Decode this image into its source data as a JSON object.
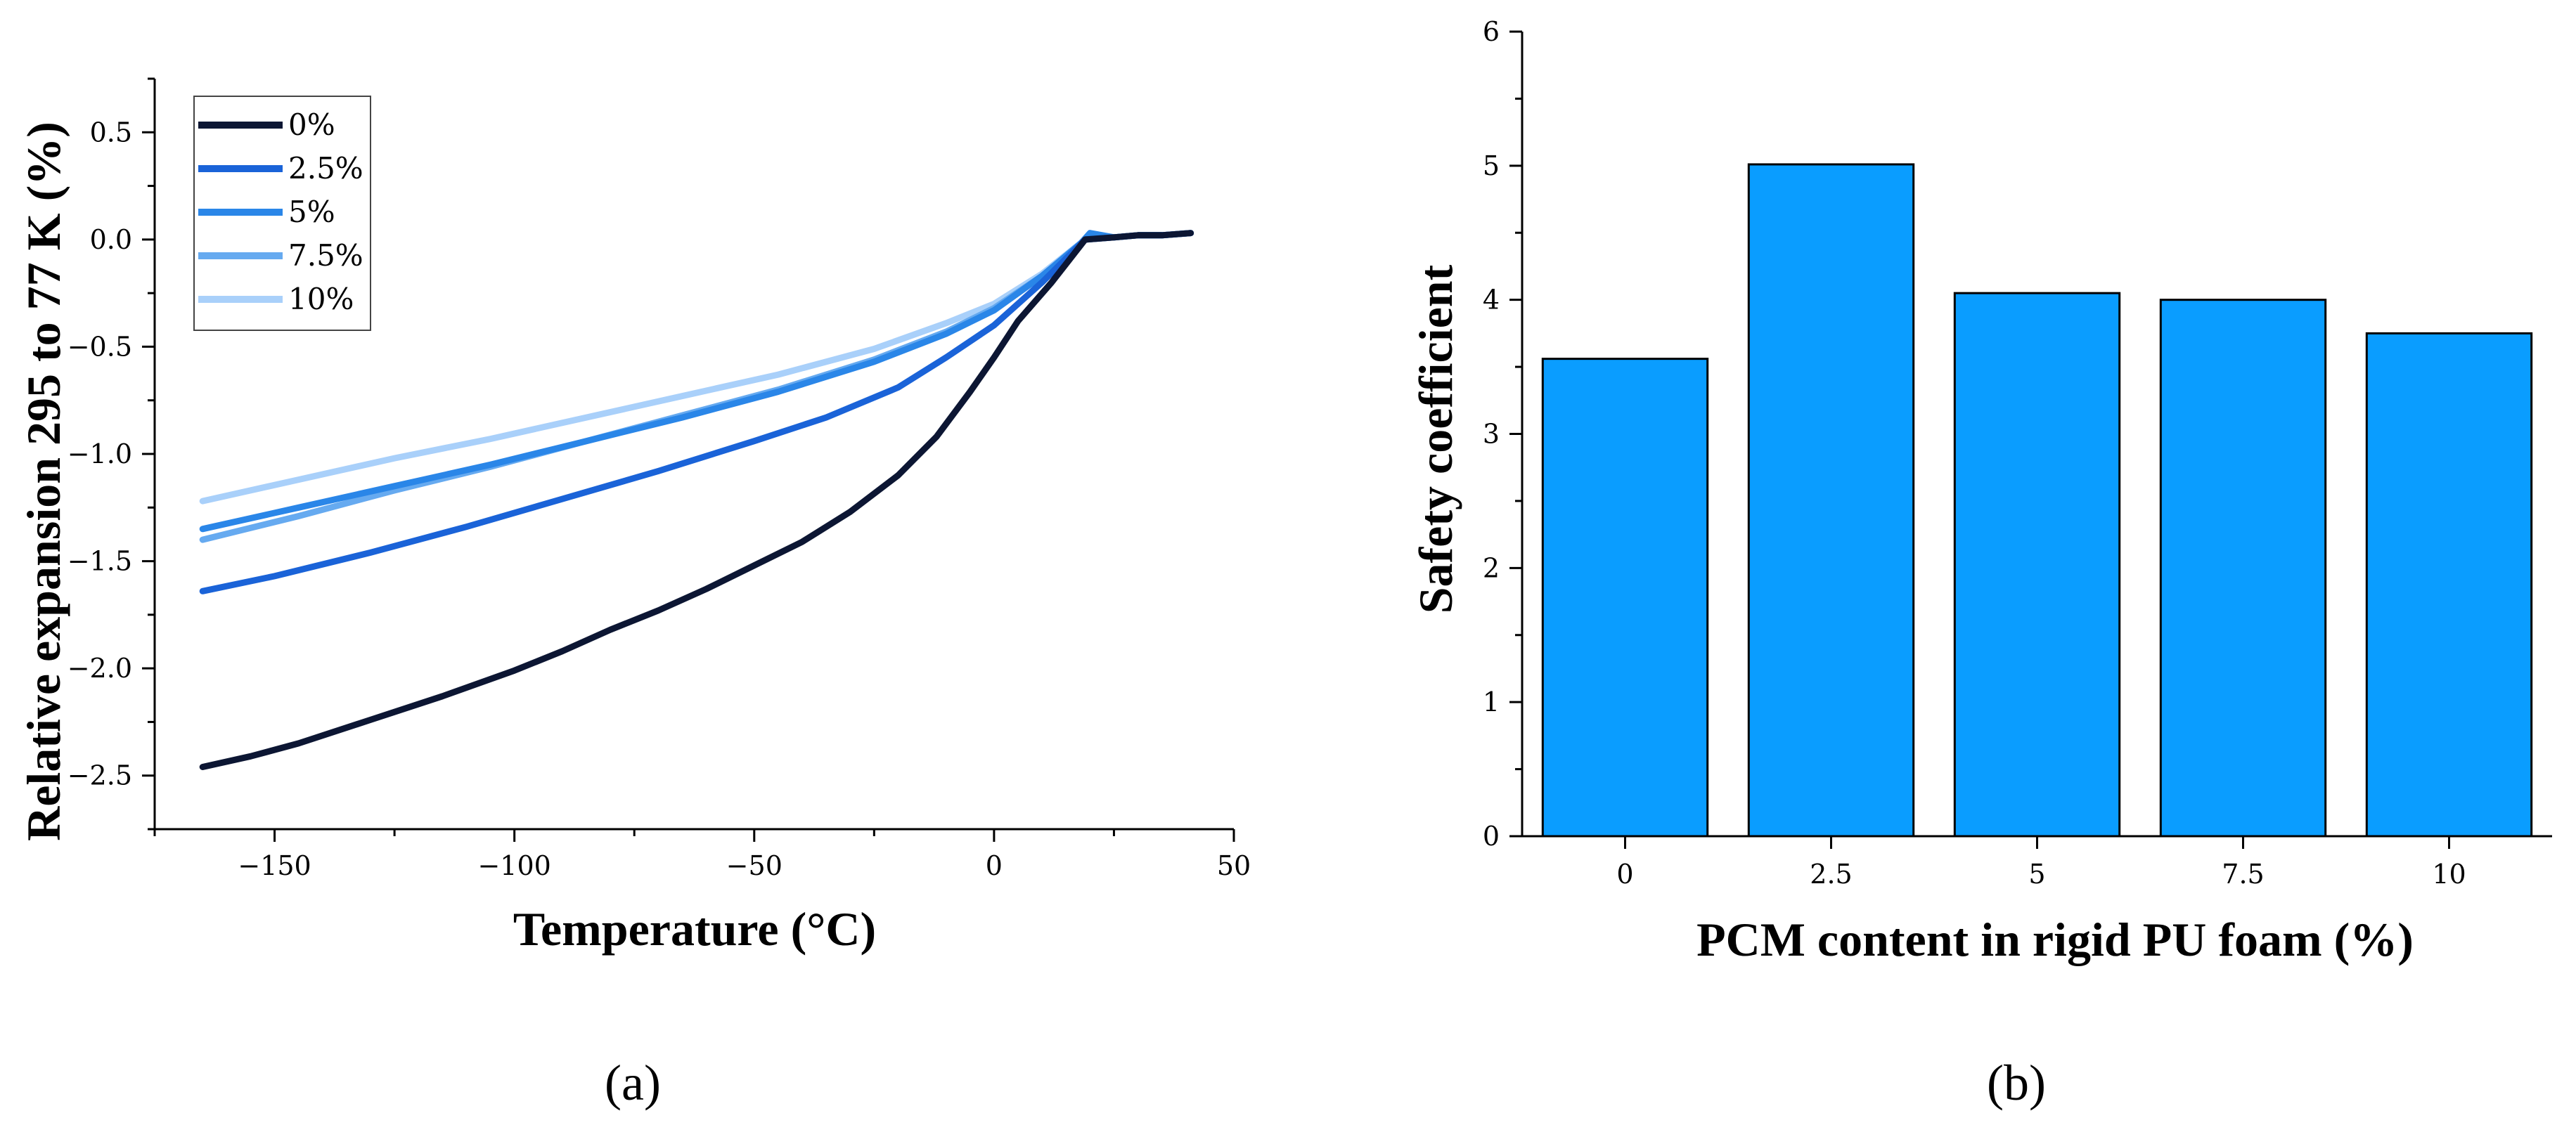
{
  "colors": {
    "s0": "#0c1633",
    "s25": "#1a63d8",
    "s5": "#2a86e8",
    "s75": "#66aaf0",
    "s10": "#a9d0fa",
    "bar_fill": "#0a9dff",
    "axis": "#000000"
  },
  "chart_data": [
    {
      "type": "line",
      "panel_label": "(a)",
      "xlabel": "Temperature (°C)",
      "ylabel": "Relative expansion 295 to 77 K (%)",
      "xlim": [
        -175,
        50
      ],
      "ylim": [
        -2.75,
        0.75
      ],
      "xticks": [
        -150,
        -100,
        -50,
        0,
        50
      ],
      "xtick_labels": [
        "−150",
        "−100",
        "−50",
        "0",
        "50"
      ],
      "yticks": [
        -2.5,
        -2.0,
        -1.5,
        -1.0,
        -0.5,
        0.0,
        0.5
      ],
      "ytick_labels": [
        "−2.5",
        "−2.0",
        "−1.5",
        "−1.0",
        "−0.5",
        "0.0",
        "0.5"
      ],
      "legend_position": "top-left",
      "series": [
        {
          "name": "0%",
          "color_key": "s0",
          "x": [
            -165,
            -155,
            -145,
            -130,
            -115,
            -100,
            -90,
            -80,
            -70,
            -60,
            -50,
            -40,
            -30,
            -20,
            -12,
            -5,
            0,
            5,
            12,
            19,
            25,
            30,
            35,
            41
          ],
          "y": [
            -2.46,
            -2.41,
            -2.35,
            -2.24,
            -2.13,
            -2.01,
            -1.92,
            -1.82,
            -1.73,
            -1.63,
            -1.52,
            -1.41,
            -1.27,
            -1.1,
            -0.92,
            -0.71,
            -0.55,
            -0.38,
            -0.2,
            0.0,
            0.01,
            0.02,
            0.02,
            0.03
          ]
        },
        {
          "name": "2.5%",
          "color_key": "s25",
          "x": [
            -165,
            -150,
            -130,
            -110,
            -90,
            -70,
            -50,
            -35,
            -20,
            -10,
            0,
            10,
            19,
            25,
            30,
            35,
            41
          ],
          "y": [
            -1.64,
            -1.57,
            -1.46,
            -1.34,
            -1.21,
            -1.08,
            -0.94,
            -0.83,
            -0.69,
            -0.55,
            -0.4,
            -0.2,
            0.0,
            0.01,
            0.02,
            0.02,
            0.03
          ]
        },
        {
          "name": "5%",
          "color_key": "s5",
          "x": [
            -165,
            -145,
            -125,
            -105,
            -85,
            -65,
            -45,
            -25,
            -10,
            0,
            10,
            18,
            20,
            25,
            30,
            35,
            41
          ],
          "y": [
            -1.35,
            -1.25,
            -1.15,
            -1.05,
            -0.94,
            -0.83,
            -0.71,
            -0.57,
            -0.44,
            -0.33,
            -0.17,
            -0.02,
            0.03,
            0.01,
            0.02,
            0.02,
            0.03
          ]
        },
        {
          "name": "7.5%",
          "color_key": "s75",
          "x": [
            -165,
            -145,
            -125,
            -105,
            -85,
            -65,
            -45,
            -25,
            -10,
            0,
            10,
            19,
            25,
            30,
            35,
            41
          ],
          "y": [
            -1.4,
            -1.29,
            -1.17,
            -1.06,
            -0.94,
            -0.82,
            -0.7,
            -0.56,
            -0.43,
            -0.32,
            -0.17,
            0.0,
            0.01,
            0.02,
            0.02,
            0.03
          ]
        },
        {
          "name": "10%",
          "color_key": "s10",
          "x": [
            -165,
            -145,
            -125,
            -105,
            -85,
            -65,
            -45,
            -25,
            -10,
            0,
            10,
            19,
            25,
            30,
            35,
            41
          ],
          "y": [
            -1.22,
            -1.12,
            -1.02,
            -0.93,
            -0.83,
            -0.73,
            -0.63,
            -0.51,
            -0.39,
            -0.3,
            -0.16,
            0.0,
            0.01,
            0.02,
            0.02,
            0.03
          ]
        }
      ]
    },
    {
      "type": "bar",
      "panel_label": "(b)",
      "xlabel": "PCM content in rigid PU foam (%)",
      "ylabel": "Safety coefficient",
      "categories": [
        "0",
        "2.5",
        "5",
        "7.5",
        "10"
      ],
      "values": [
        3.56,
        5.01,
        4.05,
        4.0,
        3.75
      ],
      "ylim": [
        0,
        6
      ],
      "yticks": [
        0,
        1,
        2,
        3,
        4,
        5,
        6
      ],
      "ytick_labels": [
        "0",
        "1",
        "2",
        "3",
        "4",
        "5",
        "6"
      ]
    }
  ]
}
